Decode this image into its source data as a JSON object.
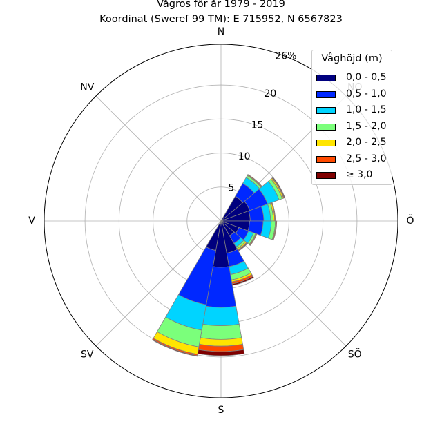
{
  "title": {
    "line1": "Vågros för år 1979 - 2019",
    "line2": "Koordinat (Sweref 99 TM): E 715952, N 6567823"
  },
  "legend": {
    "title": "Våghöjd (m)",
    "items": [
      {
        "label": "0,0 - 0,5",
        "color": "#00007f"
      },
      {
        "label": "0,5 - 1,0",
        "color": "#0028ff"
      },
      {
        "label": "1,0 - 1,5",
        "color": "#00d4ff"
      },
      {
        "label": "1,5 - 2,0",
        "color": "#7bff7b"
      },
      {
        "label": "2,0 - 2,5",
        "color": "#ffe500"
      },
      {
        "label": "2,5 - 3,0",
        "color": "#ff4a00"
      },
      {
        "label": "≥ 3,0",
        "color": "#7f0000"
      }
    ]
  },
  "chart_data": {
    "type": "polar-bar",
    "title": "Vågros för år 1979 - 2019",
    "subtitle": "Koordinat (Sweref 99 TM): E 715952, N 6567823",
    "direction_labels": [
      "N",
      "NO",
      "Ö",
      "SÖ",
      "S",
      "SV",
      "V",
      "NV"
    ],
    "direction_label_angles": [
      0,
      45,
      90,
      135,
      180,
      225,
      270,
      315
    ],
    "radial_ticks": [
      "5",
      "10",
      "15",
      "20",
      "26%"
    ],
    "radial_tick_values": [
      5,
      10,
      15,
      20,
      26
    ],
    "rmax": 26,
    "grid": true,
    "legend_position": "upper-right",
    "unit": "%",
    "sector_width_deg": 20,
    "series_names": [
      "0,0 - 0,5",
      "0,5 - 1,0",
      "1,0 - 1,5",
      "1,5 - 2,0",
      "2,0 - 2,5",
      "2,5 - 3,0",
      "≥ 3,0"
    ],
    "bins": [
      {
        "direction": 40,
        "values": [
          4.2,
          2.2,
          1.0,
          0.3,
          0.1,
          0.1,
          0.0
        ]
      },
      {
        "direction": 60,
        "values": [
          4.5,
          2.8,
          1.8,
          0.5,
          0.2,
          0.1,
          0.1
        ]
      },
      {
        "direction": 80,
        "values": [
          4.3,
          2.0,
          1.0,
          0.4,
          0.2,
          0.1,
          0.0
        ]
      },
      {
        "direction": 100,
        "values": [
          4.2,
          2.0,
          1.2,
          0.6,
          0.1,
          0.1,
          0.0
        ]
      },
      {
        "direction": 120,
        "values": [
          2.8,
          1.5,
          0.8,
          0.3,
          0.1,
          0.1,
          0.0
        ]
      },
      {
        "direction": 140,
        "values": [
          2.5,
          1.3,
          0.6,
          0.3,
          0.2,
          0.1,
          0.1
        ]
      },
      {
        "direction": 160,
        "values": [
          4.8,
          2.0,
          1.2,
          0.8,
          0.3,
          0.3,
          0.2
        ]
      },
      {
        "direction": 180,
        "values": [
          6.8,
          5.9,
          2.7,
          2.0,
          1.0,
          0.8,
          0.6
        ]
      },
      {
        "direction": 200,
        "values": [
          4.4,
          8.1,
          3.8,
          2.5,
          1.1,
          0.2,
          0.1
        ]
      }
    ]
  }
}
